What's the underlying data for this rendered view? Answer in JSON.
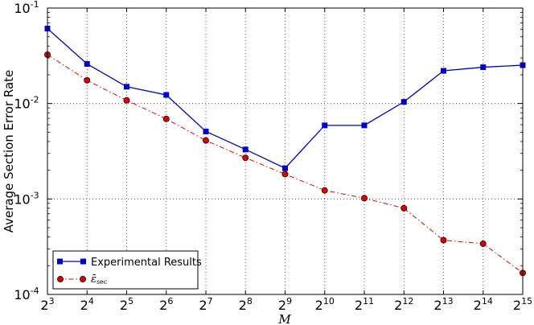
{
  "chart_data": {
    "type": "line",
    "title": "",
    "xlabel": "M",
    "ylabel": "Average Section Error Rate",
    "x_scale": "log2",
    "y_scale": "log10",
    "x": [
      8,
      16,
      32,
      64,
      128,
      256,
      512,
      1024,
      2048,
      4096,
      8192,
      16384,
      32768
    ],
    "x_tick_labels": [
      {
        "base": "2",
        "exp": "3"
      },
      {
        "base": "2",
        "exp": "4"
      },
      {
        "base": "2",
        "exp": "5"
      },
      {
        "base": "2",
        "exp": "6"
      },
      {
        "base": "2",
        "exp": "7"
      },
      {
        "base": "2",
        "exp": "8"
      },
      {
        "base": "2",
        "exp": "9"
      },
      {
        "base": "2",
        "exp": "10"
      },
      {
        "base": "2",
        "exp": "11"
      },
      {
        "base": "2",
        "exp": "12"
      },
      {
        "base": "2",
        "exp": "13"
      },
      {
        "base": "2",
        "exp": "14"
      },
      {
        "base": "2",
        "exp": "15"
      }
    ],
    "y_tick_labels": [
      {
        "base": "10",
        "exp": "-1"
      },
      {
        "base": "10",
        "exp": "-2"
      },
      {
        "base": "10",
        "exp": "-3"
      },
      {
        "base": "10",
        "exp": "-4"
      }
    ],
    "xlim": [
      8,
      32768
    ],
    "ylim": [
      0.0001,
      0.1
    ],
    "grid": true,
    "legend_position": "bottom-left",
    "series": [
      {
        "name": "Experimental Results",
        "color": "#0000cc",
        "marker": "square",
        "line_style": "solid",
        "values": [
          0.061,
          0.026,
          0.015,
          0.0123,
          0.0051,
          0.0033,
          0.0021,
          0.0059,
          0.0059,
          0.0104,
          0.022,
          0.024,
          0.0252
        ]
      },
      {
        "name": "ε̄sec",
        "name_main": "ε̄",
        "name_sub": "sec",
        "color": "#dd0000",
        "marker": "circle",
        "line_style": "dashdot",
        "values": [
          0.0325,
          0.0175,
          0.0108,
          0.0069,
          0.0041,
          0.0027,
          0.00182,
          0.00123,
          0.00102,
          0.0008,
          0.00037,
          0.00034,
          0.000168
        ]
      }
    ]
  }
}
